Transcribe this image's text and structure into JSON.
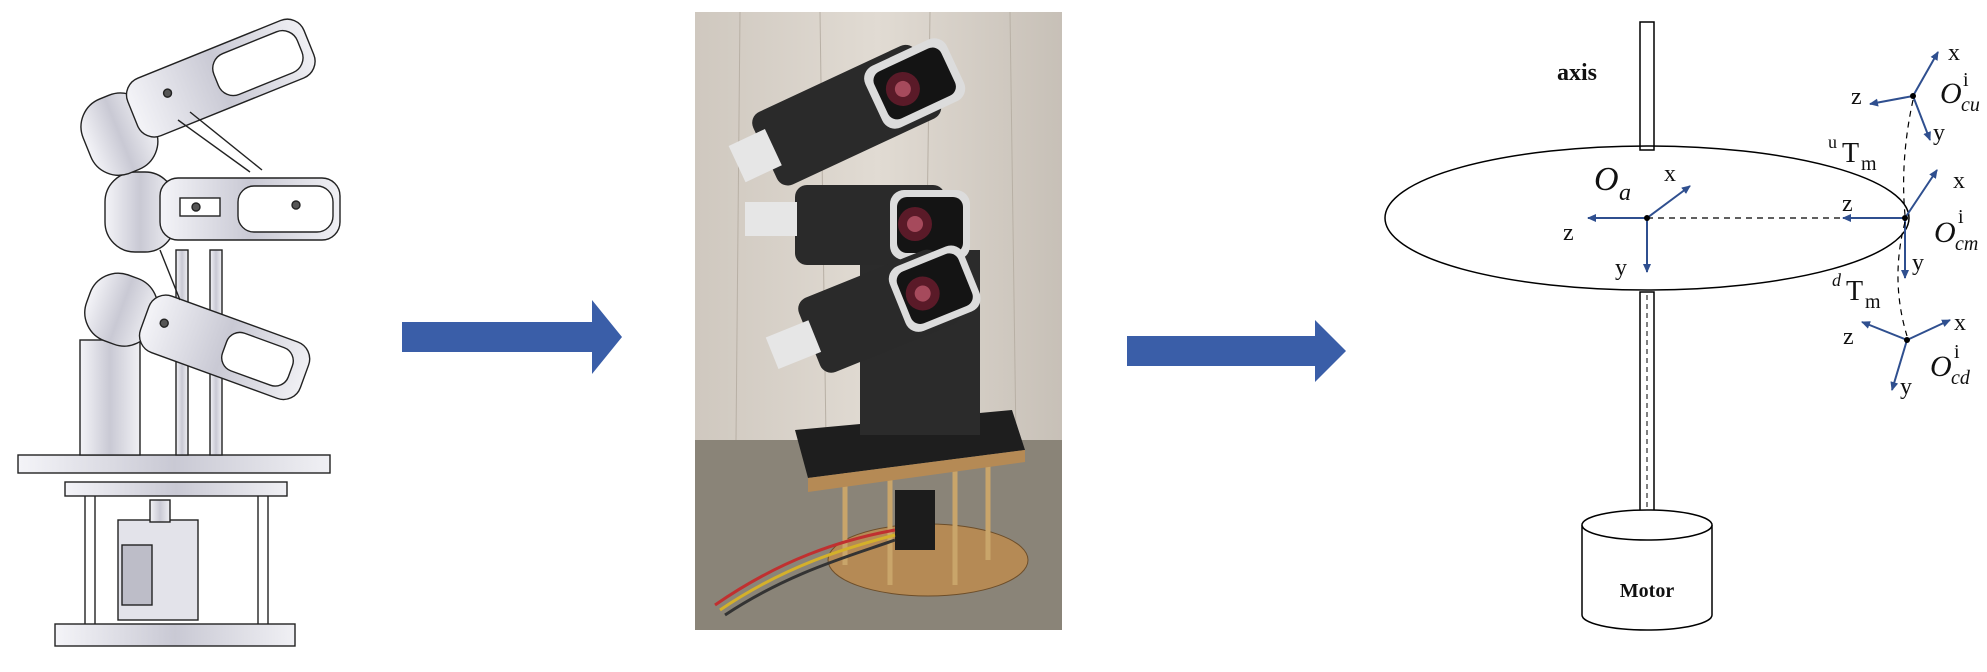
{
  "panels": {
    "cad": {
      "name": "cad-model-drawing"
    },
    "photo": {
      "name": "camera-rig-photo"
    },
    "schematic": {
      "axis_label": "axis",
      "motor_label": "Motor",
      "origin_axis": {
        "symbol": "O",
        "subscript": "a"
      },
      "frame_up": {
        "symbol": "O",
        "subscript": "cu",
        "superscript": "i"
      },
      "frame_mid": {
        "symbol": "O",
        "subscript": "cm",
        "superscript": "i"
      },
      "frame_down": {
        "symbol": "O",
        "subscript": "cd",
        "superscript": "i"
      },
      "transform_up": {
        "prefix": "u",
        "symbol": "T",
        "subscript": "m"
      },
      "transform_down": {
        "prefix": "d",
        "symbol": "T",
        "subscript": "m"
      },
      "axis_x": "x",
      "axis_y": "y",
      "axis_z": "z"
    }
  },
  "colors": {
    "arrow": "#3a5ea8",
    "frame_axis": "#2f4f8f",
    "line": "#000000"
  }
}
